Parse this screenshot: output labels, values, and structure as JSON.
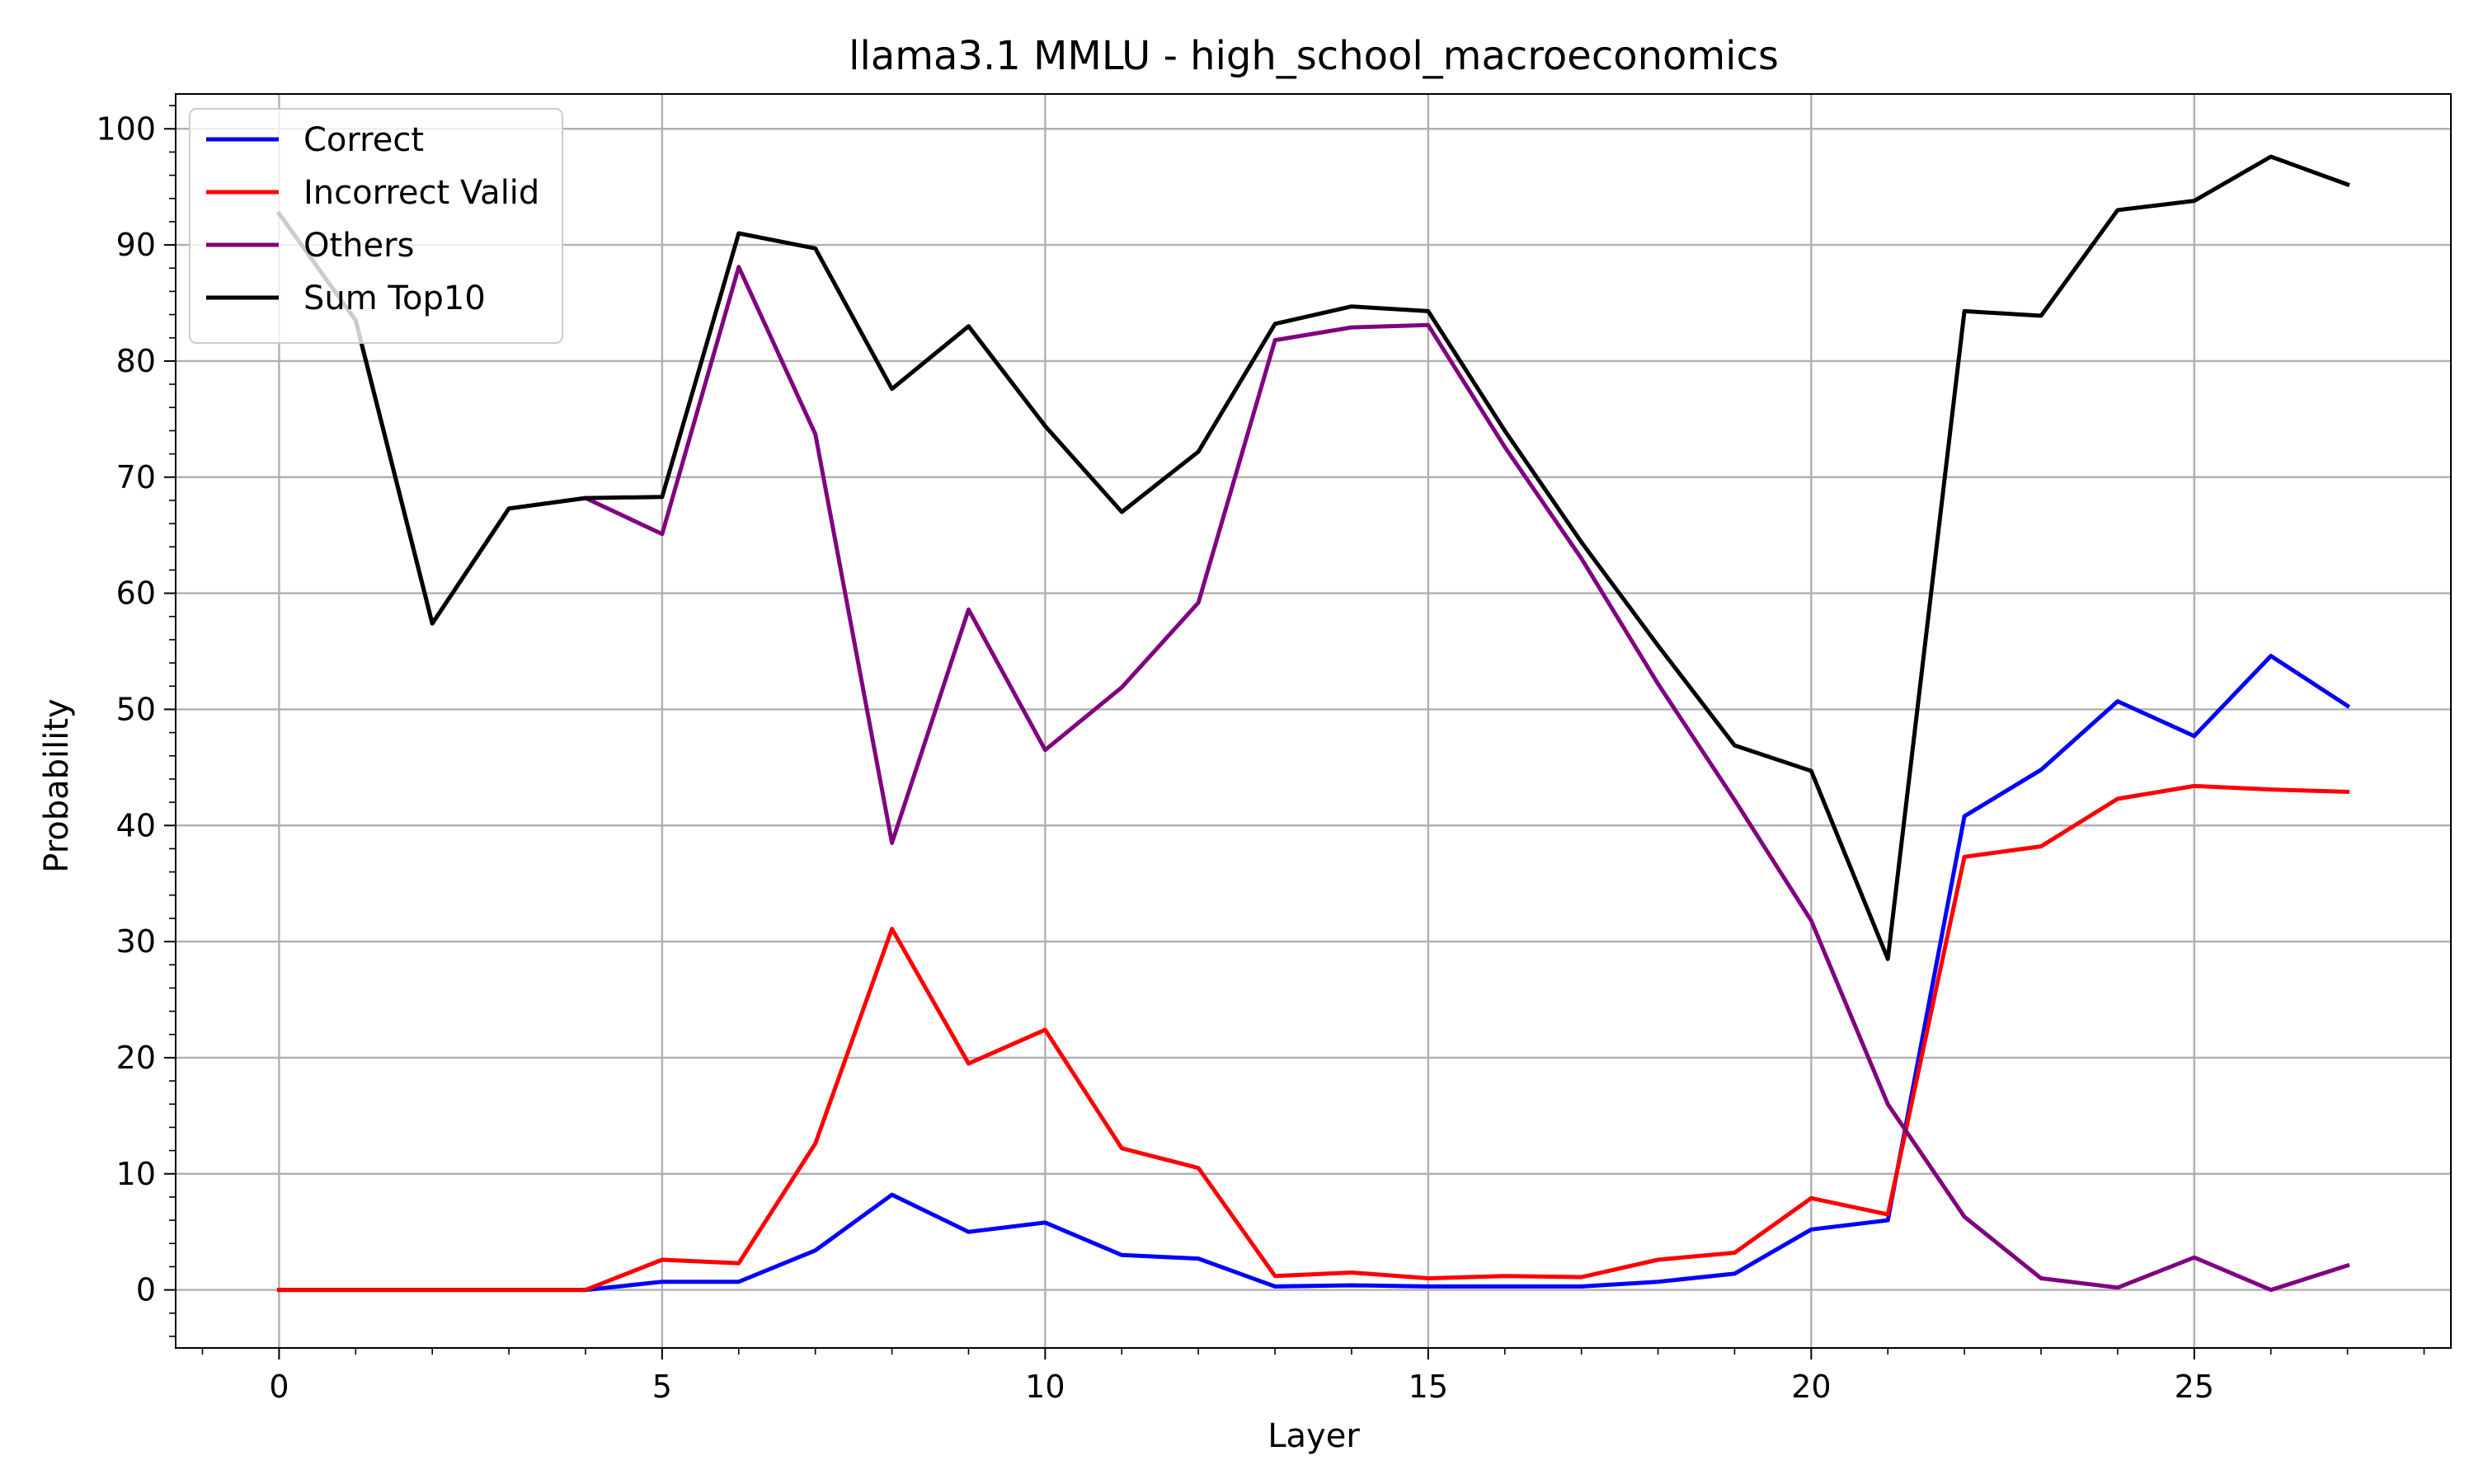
{
  "chart_data": {
    "type": "line",
    "title": "llama3.1 MMLU - high_school_macroeconomics",
    "xlabel": "Layer",
    "ylabel": "Probability",
    "xlim": [
      -1.35,
      28.35
    ],
    "ylim": [
      -5,
      103
    ],
    "xticks": [
      0,
      5,
      10,
      15,
      20,
      25
    ],
    "yticks": [
      0,
      10,
      20,
      30,
      40,
      50,
      60,
      70,
      80,
      90,
      100
    ],
    "grid": true,
    "legend_position": "top-left",
    "x": [
      0,
      1,
      2,
      3,
      4,
      5,
      6,
      7,
      8,
      9,
      10,
      11,
      12,
      13,
      14,
      15,
      16,
      17,
      18,
      19,
      20,
      21,
      22,
      23,
      24,
      25,
      26,
      27
    ],
    "series": [
      {
        "name": "Correct",
        "color": "#0000ff",
        "values": [
          0,
          0,
          0,
          0,
          0,
          0.7,
          0.7,
          3.4,
          8.2,
          5.0,
          5.8,
          3.0,
          2.7,
          0.3,
          0.4,
          0.3,
          0.3,
          0.3,
          0.7,
          1.4,
          5.2,
          6.0,
          40.8,
          44.8,
          50.7,
          47.7,
          54.6,
          50.3
        ]
      },
      {
        "name": "Incorrect Valid",
        "color": "#ff0000",
        "values": [
          0,
          0,
          0,
          0,
          0,
          2.6,
          2.3,
          12.6,
          31.1,
          19.5,
          22.4,
          12.2,
          10.5,
          1.2,
          1.5,
          1.0,
          1.2,
          1.1,
          2.6,
          3.2,
          7.9,
          6.5,
          37.3,
          38.2,
          42.3,
          43.4,
          43.1,
          42.9
        ]
      },
      {
        "name": "Others",
        "color": "#800080",
        "values": [
          92.7,
          83.5,
          57.4,
          67.3,
          68.2,
          65.1,
          88.1,
          73.7,
          38.5,
          58.6,
          46.5,
          51.9,
          59.2,
          81.8,
          82.9,
          83.1,
          72.6,
          63.0,
          52.2,
          42.2,
          31.8,
          16.0,
          6.3,
          1.0,
          0.2,
          2.8,
          0.0,
          2.1
        ]
      },
      {
        "name": "Sum Top10",
        "color": "#000000",
        "values": [
          92.7,
          83.5,
          57.4,
          67.3,
          68.2,
          68.3,
          91.0,
          89.7,
          77.6,
          83.0,
          74.4,
          67.0,
          72.2,
          83.2,
          84.7,
          84.3,
          74.0,
          64.4,
          55.5,
          46.9,
          44.7,
          28.5,
          84.3,
          83.9,
          93.0,
          93.8,
          97.6,
          95.2
        ]
      }
    ]
  }
}
